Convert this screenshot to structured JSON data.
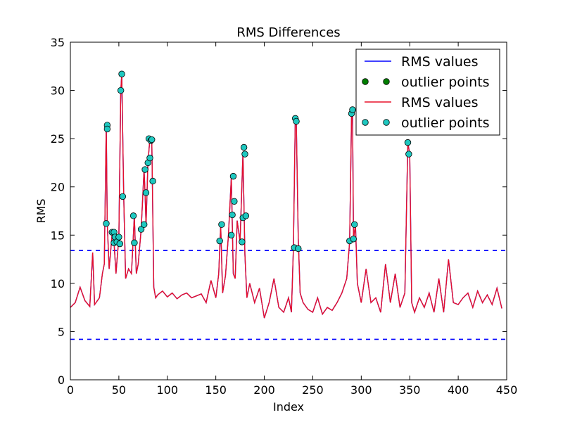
{
  "chart_data": {
    "type": "line",
    "title": "RMS Differences",
    "xlabel": "Index",
    "ylabel": "RMS",
    "xlim": [
      0,
      450
    ],
    "ylim": [
      0,
      35
    ],
    "xticks": [
      0,
      50,
      100,
      150,
      200,
      250,
      300,
      350,
      400,
      450
    ],
    "yticks": [
      0,
      5,
      10,
      15,
      20,
      25,
      30,
      35
    ],
    "grid": false,
    "legend_placement": "top-right",
    "thresholds": [
      13.4,
      4.2
    ],
    "colors": {
      "line_blue": "#0000ff",
      "line_red": "#e8102a",
      "outlier_green": "#007f00",
      "outlier_cyan": "#1ec8c0",
      "threshold": "#0000ff"
    },
    "legend": [
      {
        "label": "RMS values",
        "kind": "line",
        "color": "#0000ff"
      },
      {
        "label": "outlier points",
        "kind": "marker",
        "color": "#007f00"
      },
      {
        "label": "RMS values",
        "kind": "line",
        "color": "#e8102a"
      },
      {
        "label": "outlier points",
        "kind": "marker",
        "color": "#1ec8c0"
      }
    ],
    "series": [
      {
        "x": [
          0,
          5,
          10,
          15,
          20,
          23,
          25,
          30,
          33,
          35,
          37,
          38,
          40,
          43,
          45,
          47,
          50,
          52,
          53,
          55,
          57,
          60,
          63,
          66,
          68,
          70,
          73,
          76,
          77,
          78,
          80,
          82,
          84,
          86,
          88,
          90,
          95,
          100,
          105,
          110,
          115,
          120,
          125,
          130,
          135,
          140,
          145,
          150,
          153,
          155,
          157,
          160,
          163,
          166,
          168,
          170,
          172,
          175,
          178,
          180,
          182,
          185,
          190,
          195,
          200,
          205,
          210,
          215,
          220,
          225,
          228,
          230,
          232,
          233,
          235,
          237,
          240,
          245,
          250,
          255,
          260,
          265,
          270,
          275,
          280,
          285,
          288,
          290,
          291,
          292,
          294,
          296,
          300,
          305,
          310,
          315,
          320,
          325,
          330,
          335,
          340,
          345,
          348,
          350,
          352,
          355,
          360,
          365,
          370,
          375,
          380,
          385,
          390,
          395,
          400,
          405,
          410,
          415,
          420,
          425,
          430,
          435,
          440,
          445
        ],
        "values": [
          7.5,
          8.0,
          9.6,
          8.2,
          7.6,
          13.2,
          7.8,
          8.5,
          11.0,
          12.0,
          26.5,
          16.2,
          11.5,
          15.0,
          14.3,
          11.0,
          14.8,
          29.9,
          31.7,
          19.0,
          10.5,
          11.5,
          11.0,
          17.0,
          11.0,
          12.0,
          15.6,
          21.8,
          19.4,
          16.0,
          22.5,
          25.0,
          24.8,
          9.6,
          8.5,
          8.8,
          9.2,
          8.6,
          9.0,
          8.4,
          8.8,
          9.0,
          8.5,
          8.7,
          8.9,
          8.0,
          10.3,
          8.5,
          11.0,
          16.0,
          9.0,
          10.8,
          15.0,
          21.0,
          11.0,
          10.5,
          16.5,
          14.3,
          23.5,
          13.0,
          8.5,
          10.0,
          8.0,
          9.5,
          6.4,
          8.0,
          10.5,
          7.5,
          7.0,
          8.5,
          7.0,
          13.6,
          27.2,
          26.9,
          14.7,
          9.0,
          8.0,
          7.3,
          7.0,
          8.5,
          6.8,
          7.5,
          7.2,
          8.0,
          9.0,
          10.5,
          14.3,
          27.7,
          28.0,
          14.6,
          16.1,
          10.0,
          8.0,
          11.5,
          8.0,
          8.5,
          7.0,
          12.0,
          8.0,
          11.0,
          7.5,
          9.0,
          24.6,
          23.4,
          8.0,
          7.0,
          8.5,
          7.5,
          9.0,
          7.0,
          10.5,
          7.0,
          12.5,
          8.0,
          7.8,
          8.5,
          9.0,
          7.5,
          9.2,
          8.0,
          8.8,
          7.8,
          9.5,
          7.4
        ],
        "color": "#e8102a"
      }
    ],
    "outliers": {
      "x": [
        37,
        38,
        38,
        43,
        45,
        45,
        46,
        48,
        50,
        51,
        52,
        53,
        54,
        65,
        66,
        73,
        76,
        77,
        78,
        80,
        81,
        82,
        83,
        84,
        85,
        154,
        156,
        166,
        167,
        168,
        169,
        177,
        178,
        179,
        180,
        181,
        231,
        232,
        233,
        235,
        288,
        290,
        291,
        292,
        293,
        348,
        349
      ],
      "values": [
        16.2,
        26.4,
        26.0,
        15.3,
        14.2,
        15.3,
        14.8,
        14.3,
        14.8,
        14.1,
        30.0,
        31.7,
        19.0,
        17.0,
        14.2,
        15.6,
        16.1,
        21.8,
        19.4,
        22.5,
        25.0,
        23.0,
        24.8,
        24.9,
        20.6,
        14.4,
        16.1,
        15.0,
        17.1,
        21.1,
        18.5,
        14.3,
        16.8,
        24.1,
        23.4,
        17.0,
        13.7,
        27.1,
        26.8,
        13.6,
        14.4,
        27.6,
        28.0,
        14.6,
        16.1,
        24.6,
        23.4
      ],
      "color": "#1ec8c0"
    }
  }
}
